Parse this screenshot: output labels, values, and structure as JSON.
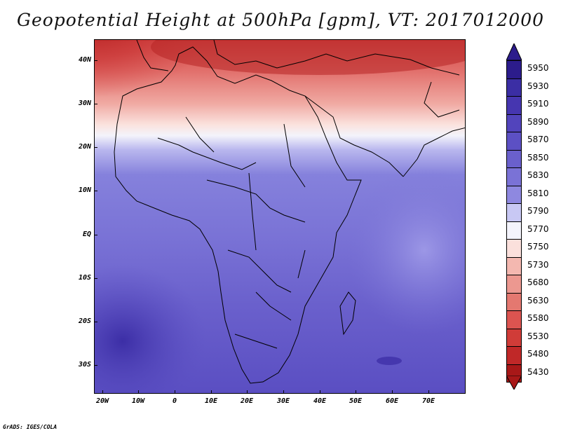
{
  "title": "Geopotential Height at 500hPa [gpm], VT: 2017012000",
  "credit": "GrADS: IGES/COLA",
  "lat_labels": [
    "40N",
    "30N",
    "20N",
    "10N",
    "EQ",
    "10S",
    "20S",
    "30S"
  ],
  "lon_labels": [
    "20W",
    "10W",
    "0",
    "10E",
    "20E",
    "30E",
    "40E",
    "50E",
    "60E",
    "70E"
  ],
  "colorbar": {
    "levels": [
      "5950",
      "5930",
      "5910",
      "5890",
      "5870",
      "5850",
      "5830",
      "5810",
      "5790",
      "5770",
      "5750",
      "5730",
      "5680",
      "5630",
      "5580",
      "5530",
      "5480",
      "5430"
    ],
    "colors": [
      "#2c1c8c",
      "#3b2ea4",
      "#4636b0",
      "#5244bc",
      "#5c50c4",
      "#6a60cc",
      "#7a72d6",
      "#8e88e0",
      "#c8c8f4",
      "#f4f4fc",
      "#fbe0dc",
      "#f4b8b0",
      "#ec9890",
      "#e47870",
      "#dc5450",
      "#d03c38",
      "#c02828",
      "#a81818"
    ]
  }
}
